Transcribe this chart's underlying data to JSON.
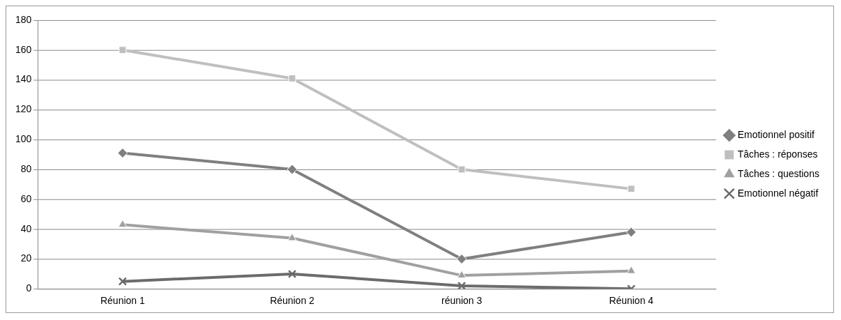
{
  "chart_data": {
    "type": "line",
    "categories": [
      "Réunion 1",
      "Réunion 2",
      "réunion 3",
      "Réunion 4"
    ],
    "series": [
      {
        "name": "Emotionnel positif",
        "color": "#7f7f7f",
        "marker": "diamond",
        "values": [
          91,
          80,
          20,
          38
        ]
      },
      {
        "name": "Tâches : réponses",
        "color": "#bfbfbf",
        "marker": "square",
        "values": [
          160,
          141,
          80,
          67
        ]
      },
      {
        "name": "Tâches : questions",
        "color": "#a0a0a0",
        "marker": "triangle",
        "values": [
          43,
          34,
          9,
          12
        ]
      },
      {
        "name": "Emotionnel négatif",
        "color": "#6b6b6b",
        "marker": "cross",
        "values": [
          5,
          10,
          2,
          0
        ]
      }
    ],
    "ylim": [
      0,
      180
    ],
    "yticks": [
      0,
      20,
      40,
      60,
      80,
      100,
      120,
      140,
      160,
      180
    ],
    "grid": "y",
    "legend": "right"
  }
}
